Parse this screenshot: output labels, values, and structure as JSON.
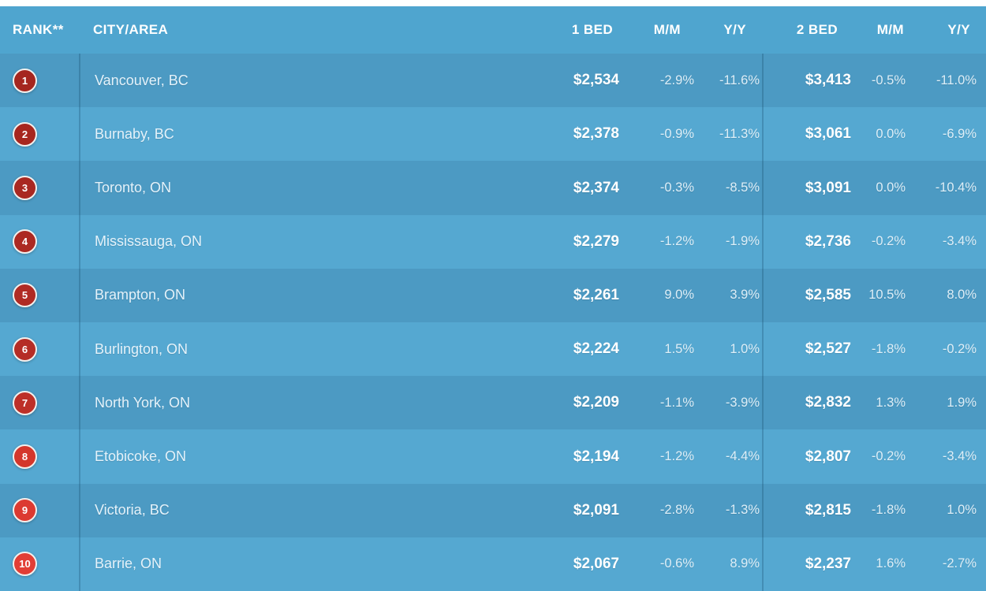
{
  "colors": {
    "header_bg": "#4FA5CF",
    "row_dark": "#4C9AC3",
    "row_light": "#55A8D1",
    "divider": "#3E89B2",
    "badge_border": "#F2F1EF",
    "top_strip": "#FFFFFF",
    "text_primary": "#FFFFFF"
  },
  "chart_data": {
    "type": "table",
    "columns": [
      "RANK**",
      "CITY/AREA",
      "1 BED",
      "M/M",
      "Y/Y",
      "2 BED",
      "M/M",
      "Y/Y"
    ],
    "rows": [
      {
        "rank": "1",
        "city": "Vancouver, BC",
        "bed1": "$2,534",
        "bed1_mm": "-2.9%",
        "bed1_yy": "-11.6%",
        "bed2": "$3,413",
        "bed2_mm": "-0.5%",
        "bed2_yy": "-11.0%",
        "badge_color": "#A5261F"
      },
      {
        "rank": "2",
        "city": "Burnaby, BC",
        "bed1": "$2,378",
        "bed1_mm": "-0.9%",
        "bed1_yy": "-11.3%",
        "bed2": "$3,061",
        "bed2_mm": "0.0%",
        "bed2_yy": "-6.9%",
        "badge_color": "#A7271F"
      },
      {
        "rank": "3",
        "city": "Toronto, ON",
        "bed1": "$2,374",
        "bed1_mm": "-0.3%",
        "bed1_yy": "-8.5%",
        "bed2": "$3,091",
        "bed2_mm": "0.0%",
        "bed2_yy": "-10.4%",
        "badge_color": "#A92821"
      },
      {
        "rank": "4",
        "city": "Mississauga, ON",
        "bed1": "$2,279",
        "bed1_mm": "-1.2%",
        "bed1_yy": "-1.9%",
        "bed2": "$2,736",
        "bed2_mm": "-0.2%",
        "bed2_yy": "-3.4%",
        "badge_color": "#AC2922"
      },
      {
        "rank": "5",
        "city": "Brampton, ON",
        "bed1": "$2,261",
        "bed1_mm": "9.0%",
        "bed1_yy": "3.9%",
        "bed2": "$2,585",
        "bed2_mm": "10.5%",
        "bed2_yy": "8.0%",
        "badge_color": "#B02B24"
      },
      {
        "rank": "6",
        "city": "Burlington, ON",
        "bed1": "$2,224",
        "bed1_mm": "1.5%",
        "bed1_yy": "1.0%",
        "bed2": "$2,527",
        "bed2_mm": "-1.8%",
        "bed2_yy": "-0.2%",
        "badge_color": "#B52D26"
      },
      {
        "rank": "7",
        "city": "North York, ON",
        "bed1": "$2,209",
        "bed1_mm": "-1.1%",
        "bed1_yy": "-3.9%",
        "bed2": "$2,832",
        "bed2_mm": "1.3%",
        "bed2_yy": "1.9%",
        "badge_color": "#BD3028"
      },
      {
        "rank": "8",
        "city": "Etobicoke, ON",
        "bed1": "$2,194",
        "bed1_mm": "-1.2%",
        "bed1_yy": "-4.4%",
        "bed2": "$2,807",
        "bed2_mm": "-0.2%",
        "bed2_yy": "-3.4%",
        "badge_color": "#D4372C"
      },
      {
        "rank": "9",
        "city": "Victoria, BC",
        "bed1": "$2,091",
        "bed1_mm": "-2.8%",
        "bed1_yy": "-1.3%",
        "bed2": "$2,815",
        "bed2_mm": "-1.8%",
        "bed2_yy": "1.0%",
        "badge_color": "#DC3A31"
      },
      {
        "rank": "10",
        "city": "Barrie, ON",
        "bed1": "$2,067",
        "bed1_mm": "-0.6%",
        "bed1_yy": "8.9%",
        "bed2": "$2,237",
        "bed2_mm": "1.6%",
        "bed2_yy": "-2.7%",
        "badge_color": "#E23E35"
      }
    ]
  }
}
